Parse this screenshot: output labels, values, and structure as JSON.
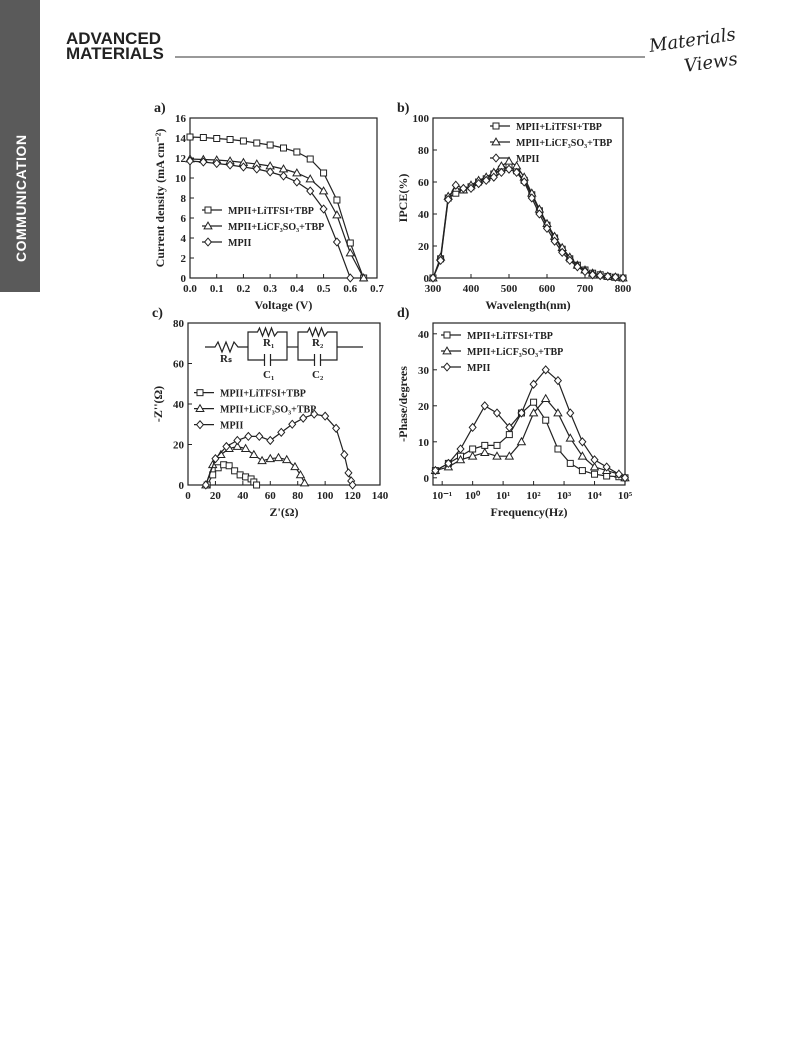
{
  "header": {
    "journal_line1": "ADVANCED",
    "journal_line2": "MATERIALS",
    "publisher_line1": "Materials",
    "publisher_line2": "Views"
  },
  "sidebar": "COMMUNICATION",
  "chart_data": [
    {
      "type": "line",
      "label": "a)",
      "xlabel": "Voltage (V)",
      "ylabel": "Current density  (mA cm⁻²)",
      "x": [
        0,
        0.05,
        0.1,
        0.15,
        0.2,
        0.25,
        0.3,
        0.35,
        0.4,
        0.45,
        0.5,
        0.55,
        0.6,
        0.65
      ],
      "xlim": [
        0,
        0.7
      ],
      "xticks": [
        {
          "value": 0,
          "label": "0.0"
        },
        0.1,
        0.2,
        0.3,
        0.4,
        0.5,
        0.6,
        0.7
      ],
      "ylim": [
        0,
        16
      ],
      "yticks": [
        0,
        2,
        4,
        6,
        8,
        10,
        12,
        14,
        16
      ],
      "legend": "lower left",
      "series": [
        {
          "name": "MPII+LiTFSI+TBP",
          "color": "#222222",
          "marker": "square",
          "values": [
            14.1,
            14.05,
            13.95,
            13.85,
            13.7,
            13.5,
            13.3,
            13.0,
            12.6,
            11.9,
            10.5,
            7.8,
            3.5,
            0
          ]
        },
        {
          "name": "MPII+LiCF₃SO₃+TBP",
          "color": "#222222",
          "marker": "triangle",
          "values": [
            11.9,
            11.85,
            11.8,
            11.7,
            11.55,
            11.4,
            11.2,
            10.9,
            10.5,
            9.9,
            8.7,
            6.3,
            2.5,
            0
          ]
        },
        {
          "name": "MPII",
          "color": "#222222",
          "marker": "diamond",
          "values": [
            11.7,
            11.6,
            11.45,
            11.3,
            11.1,
            10.9,
            10.6,
            10.2,
            9.6,
            8.7,
            6.9,
            3.6,
            0,
            null
          ]
        }
      ]
    },
    {
      "type": "line",
      "label": "b)",
      "xlabel": "Wavelength(nm)",
      "ylabel": "IPCE(%)",
      "x": [
        300,
        320,
        340,
        360,
        380,
        400,
        420,
        440,
        460,
        480,
        500,
        520,
        540,
        560,
        580,
        600,
        620,
        640,
        660,
        680,
        700,
        720,
        740,
        760,
        780,
        800
      ],
      "xlim": [
        300,
        800
      ],
      "xticks": [
        300,
        400,
        500,
        600,
        700,
        800
      ],
      "ylim": [
        0,
        100
      ],
      "yticks": [
        0,
        20,
        40,
        60,
        80,
        100
      ],
      "legend": "upper right",
      "series": [
        {
          "name": "MPII+LiTFSI+TBP",
          "color": "#222222",
          "marker": "square",
          "values": [
            0,
            12,
            50,
            53,
            55,
            57,
            60,
            62,
            65,
            68,
            70,
            67,
            61,
            52,
            42,
            33,
            25,
            18,
            12,
            8,
            5,
            3,
            2,
            1,
            0.5,
            0
          ]
        },
        {
          "name": "MPII+LiCF₃SO₃+TBP",
          "color": "#222222",
          "marker": "triangle",
          "values": [
            0,
            13,
            51,
            56,
            55,
            58,
            61,
            63,
            66,
            70,
            73,
            70,
            63,
            53,
            43,
            34,
            26,
            19,
            13,
            8,
            5,
            3,
            2,
            1,
            0.5,
            0
          ]
        },
        {
          "name": "MPII",
          "color": "#222222",
          "marker": "diamond",
          "values": [
            0,
            11,
            49,
            58,
            56,
            56,
            59,
            61,
            63,
            66,
            68,
            66,
            60,
            50,
            40,
            31,
            23,
            16,
            11,
            7,
            4,
            2,
            1.5,
            1,
            0.5,
            0
          ]
        }
      ]
    },
    {
      "type": "line",
      "label": "c)",
      "xlabel": "Z'(Ω)",
      "ylabel": "-Z''(Ω)",
      "xlim": [
        0,
        140
      ],
      "xticks": [
        0,
        20,
        40,
        60,
        80,
        100,
        120,
        140
      ],
      "ylim": [
        0,
        80
      ],
      "yticks": [
        0,
        20,
        40,
        60,
        80
      ],
      "legend": "center left",
      "annotations": [
        "Rₛ",
        "R₁",
        "C₁",
        "R₂",
        "C₂"
      ],
      "series": [
        {
          "name": "MPII+LiTFSI+TBP",
          "color": "#222222",
          "marker": "square",
          "x": [
            14,
            18,
            22,
            26,
            30,
            34,
            38,
            42,
            46,
            48,
            50
          ],
          "values": [
            0,
            5,
            8.5,
            10,
            9.5,
            7,
            5,
            4,
            3,
            1.5,
            0
          ]
        },
        {
          "name": "MPII+LiCF₃SO₃+TBP",
          "color": "#222222",
          "marker": "triangle",
          "x": [
            13,
            18,
            24,
            30,
            36,
            42,
            48,
            54,
            60,
            66,
            72,
            78,
            82,
            85
          ],
          "values": [
            0,
            10,
            15,
            18,
            19,
            18,
            15,
            12,
            13,
            13.5,
            12.5,
            9,
            5,
            1
          ]
        },
        {
          "name": "MPII",
          "color": "#222222",
          "marker": "diamond",
          "x": [
            13,
            20,
            28,
            36,
            44,
            52,
            60,
            68,
            76,
            84,
            92,
            100,
            108,
            114,
            117,
            119,
            120
          ],
          "values": [
            0,
            13,
            19,
            22,
            24,
            24,
            22,
            26,
            30,
            33,
            35,
            34,
            28,
            15,
            6,
            2,
            0
          ]
        }
      ]
    },
    {
      "type": "line",
      "label": "d)",
      "xlabel": "Frequency(Hz)",
      "ylabel": "-Phase/degrees",
      "xscale": "log",
      "x": [
        0.06,
        0.16,
        0.4,
        1,
        2.5,
        6.3,
        16,
        40,
        100,
        250,
        630,
        1600,
        4000,
        10000,
        25000,
        63000,
        100000
      ],
      "xlim": [
        0.05,
        100000
      ],
      "xticks": [
        {
          "value": 0.1,
          "label": "10⁻¹"
        },
        {
          "value": 1,
          "label": "10⁰"
        },
        {
          "value": 10,
          "label": "10¹"
        },
        {
          "value": 100,
          "label": "10²"
        },
        {
          "value": 1000,
          "label": "10³"
        },
        {
          "value": 10000,
          "label": "10⁴"
        },
        {
          "value": 100000,
          "label": "10⁵"
        }
      ],
      "ylim": [
        -2,
        43
      ],
      "yticks": [
        0,
        10,
        20,
        30,
        40
      ],
      "legend": "upper left",
      "series": [
        {
          "name": "MPII+LiTFSI+TBP",
          "color": "#222222",
          "marker": "square",
          "values": [
            2,
            4,
            6,
            8,
            9,
            9,
            12,
            18,
            21,
            16,
            8,
            4,
            2,
            1,
            0.5,
            0.3,
            0
          ]
        },
        {
          "name": "MPII+LiCF₃SO₃+TBP",
          "color": "#222222",
          "marker": "triangle",
          "values": [
            2,
            3,
            5,
            6,
            7,
            6,
            6,
            10,
            18,
            22,
            18,
            11,
            6,
            3,
            2,
            1,
            0
          ]
        },
        {
          "name": "MPII",
          "color": "#222222",
          "marker": "diamond",
          "values": [
            2,
            4,
            8,
            14,
            20,
            18,
            14,
            18,
            26,
            30,
            27,
            18,
            10,
            5,
            3,
            1,
            0
          ]
        }
      ]
    }
  ]
}
